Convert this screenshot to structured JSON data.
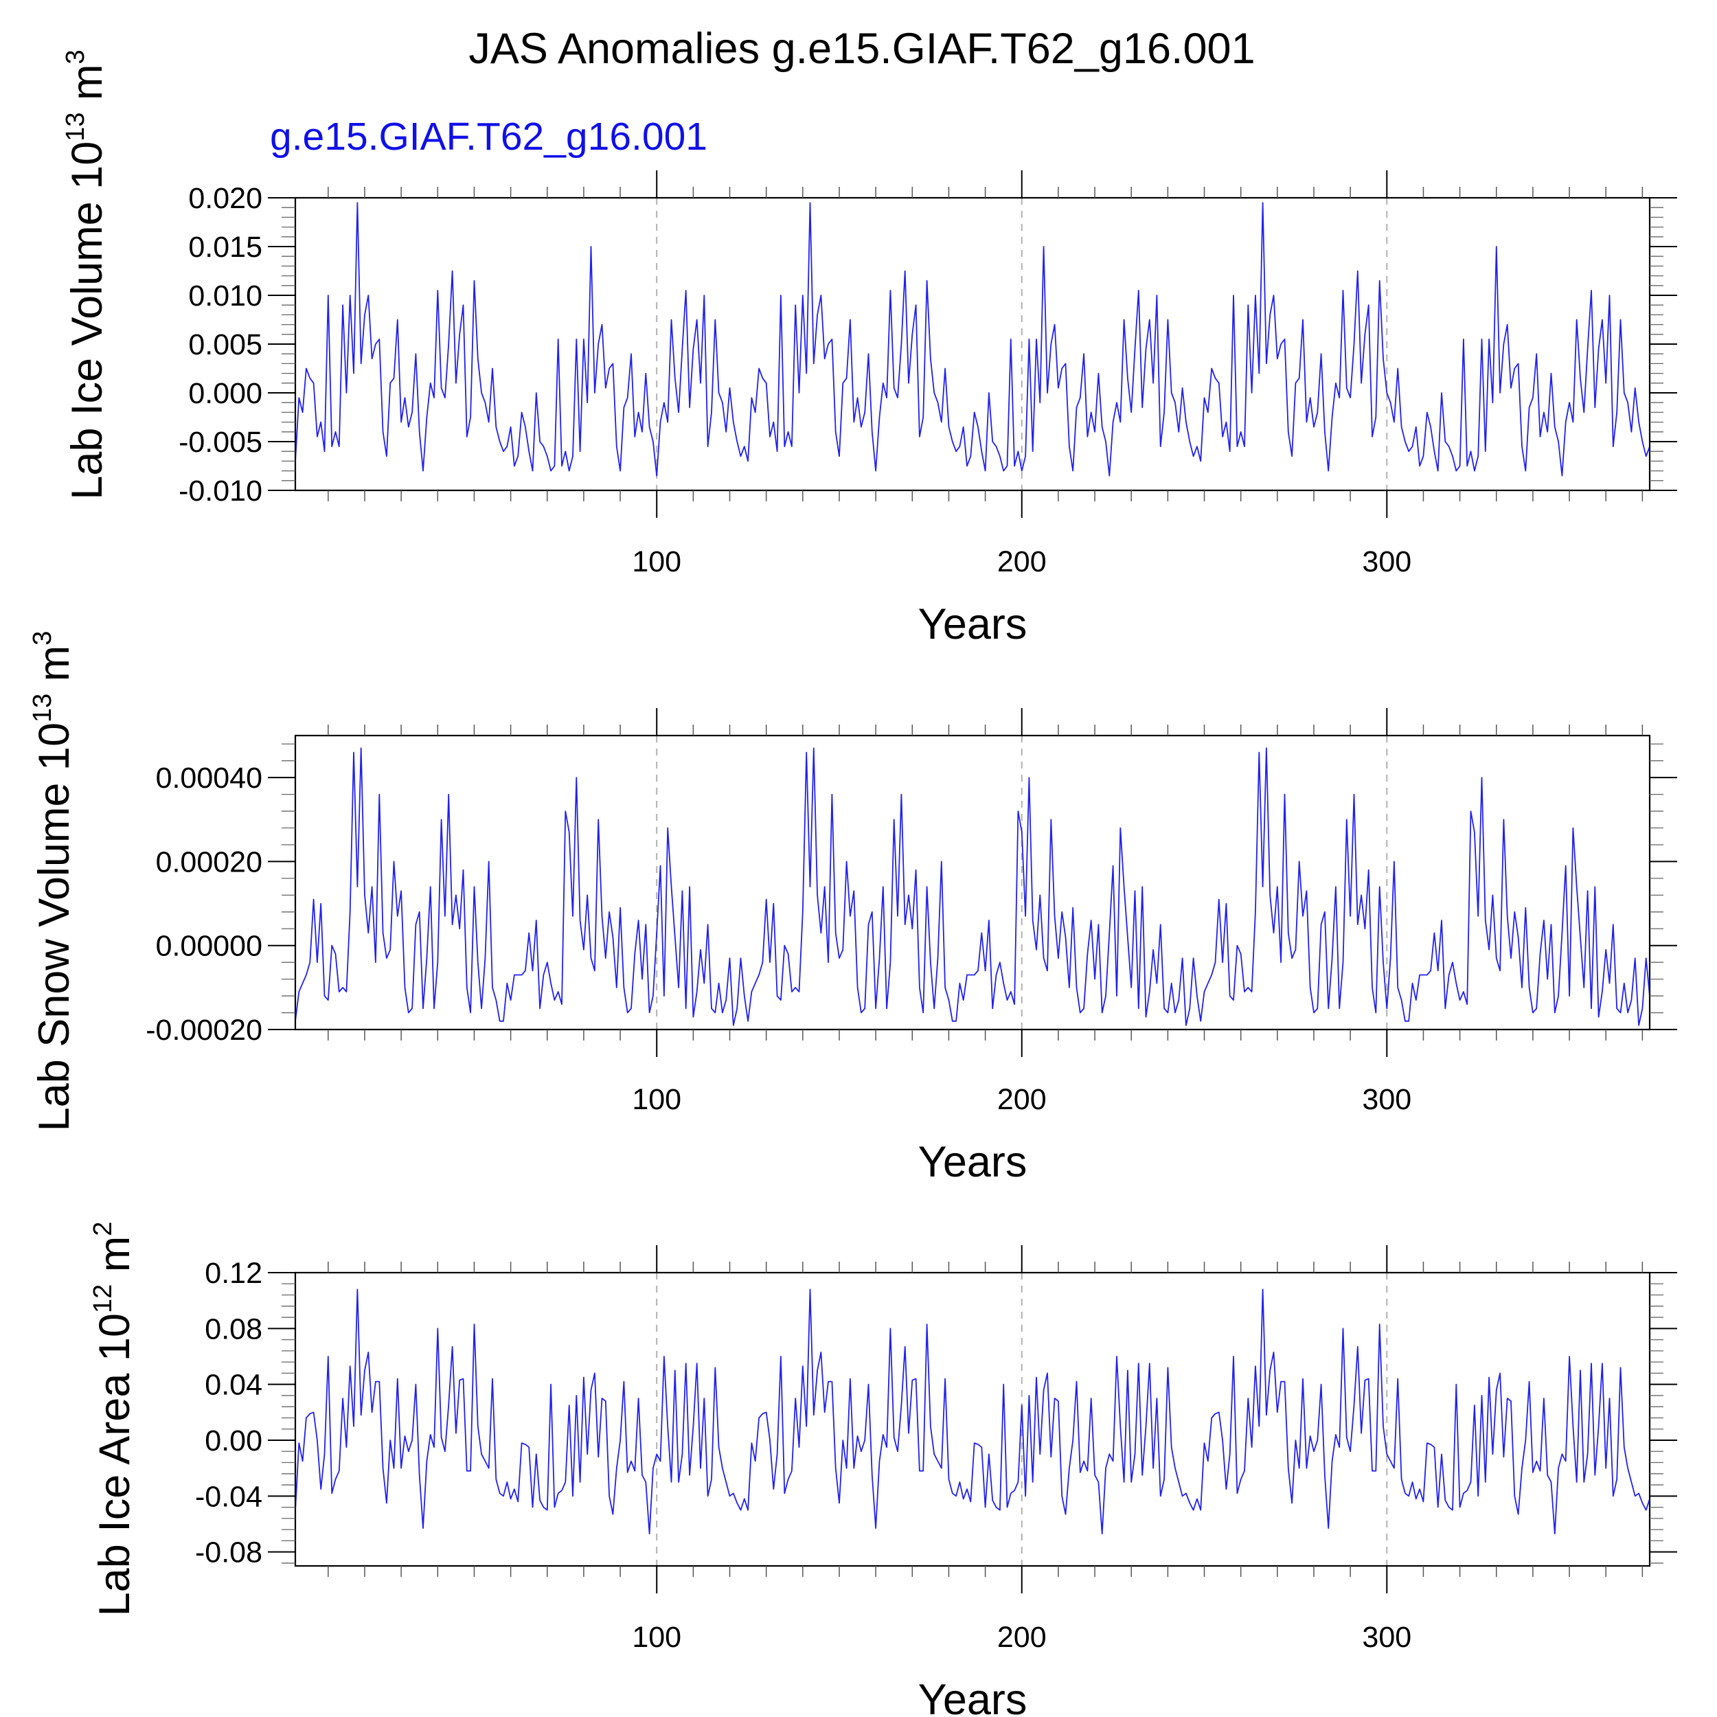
{
  "colors": {
    "series": "#2020f0",
    "frame": "#000000",
    "grid": "#b0b0b0",
    "case_label": "#1010e8"
  },
  "chart_data": [
    {
      "type": "line",
      "title": "JAS Anomalies g.e15.GIAF.T62_g16.001",
      "case_label": "g.e15.GIAF.T62_g16.001",
      "ylabel": {
        "main": "Lab Ice Volume 10",
        "exp": "13",
        "unit": " m",
        "unit_exp": "3"
      },
      "xlabel": "Years",
      "xlim": [
        1,
        372
      ],
      "ylim": [
        -0.01,
        0.02
      ],
      "yticks": [
        -0.01,
        -0.005,
        0.0,
        0.005,
        0.01,
        0.015,
        0.02
      ],
      "ytick_labels": [
        "-0.010",
        "-0.005",
        "0.000",
        "0.005",
        "0.010",
        "0.015",
        "0.020"
      ],
      "xticks": [
        100,
        200,
        300
      ],
      "xtick_labels": [
        "100",
        "200",
        "300"
      ],
      "period": 124,
      "pattern": [
        -0.007,
        -0.0005,
        -0.002,
        0.0025,
        0.0015,
        0.001,
        -0.0045,
        -0.003,
        -0.006,
        0.01,
        -0.0055,
        -0.004,
        -0.0055,
        0.009,
        0.0,
        0.01,
        0.002,
        0.0195,
        0.003,
        0.008,
        0.01,
        0.0035,
        0.005,
        0.0055,
        -0.004,
        -0.0065,
        0.001,
        0.0015,
        0.0075,
        -0.003,
        -0.0005,
        -0.0035,
        -0.002,
        0.004,
        -0.004,
        -0.008,
        -0.0025,
        0.001,
        -0.0005,
        0.0105,
        0.0005,
        -0.0005,
        0.005,
        0.0125,
        0.001,
        0.006,
        0.009,
        -0.0045,
        -0.0025,
        0.0115,
        0.0035,
        0.0,
        -0.001,
        -0.003,
        0.0025,
        -0.0035,
        -0.005,
        -0.006,
        -0.0055,
        -0.0035,
        -0.0075,
        -0.0065,
        -0.002,
        -0.0035,
        -0.006,
        -0.008,
        0.0,
        -0.005,
        -0.0055,
        -0.0065,
        -0.008,
        -0.0075,
        0.0055,
        -0.0075,
        -0.006,
        -0.008,
        -0.0065,
        0.0055,
        -0.006,
        0.0055,
        -0.001,
        0.015,
        0.0,
        0.005,
        0.007,
        0.0005,
        0.0025,
        0.003,
        -0.0055,
        -0.008,
        -0.0015,
        -0.0005,
        0.004,
        -0.0045,
        -0.002,
        -0.004,
        0.002,
        -0.0035,
        -0.005,
        -0.0085,
        -0.003,
        -0.001,
        -0.003,
        0.0075,
        0.0015,
        -0.002,
        0.0045,
        0.0105,
        -0.0015,
        0.0045,
        0.0075,
        0.001,
        0.01,
        -0.0055,
        -0.002,
        0.0075,
        0.0,
        -0.001,
        -0.004,
        0.0005,
        -0.003,
        -0.005,
        -0.0065,
        -0.0055
      ]
    },
    {
      "type": "line",
      "ylabel": {
        "main": "Lab Snow Volume 10",
        "exp": "13",
        "unit": " m",
        "unit_exp": "3"
      },
      "xlabel": "Years",
      "xlim": [
        1,
        372
      ],
      "ylim": [
        -0.0002,
        0.0005
      ],
      "yticks": [
        -0.0002,
        0.0,
        0.0002,
        0.0004
      ],
      "ytick_labels": [
        "-0.00020",
        "0.00000",
        "0.00020",
        "0.00040"
      ],
      "xticks": [
        100,
        200,
        300
      ],
      "xtick_labels": [
        "100",
        "200",
        "300"
      ],
      "period": 124,
      "pattern": [
        -0.00018,
        -0.00011,
        -9e-05,
        -7e-05,
        -4e-05,
        0.00011,
        -4e-05,
        0.0001,
        -0.00012,
        -0.00013,
        0.0,
        -2e-05,
        -0.00011,
        -0.0001,
        -0.00011,
        8e-05,
        0.00046,
        0.00014,
        0.00047,
        0.00012,
        3e-05,
        0.00014,
        -4e-05,
        0.00036,
        3e-05,
        -3e-05,
        -1e-05,
        0.0002,
        7e-05,
        0.00013,
        -0.0001,
        -0.00016,
        -0.00015,
        5e-05,
        8e-05,
        -0.00015,
        -3e-05,
        0.00014,
        -0.00015,
        -4e-05,
        0.0003,
        7e-05,
        0.00036,
        5e-05,
        0.00012,
        4e-05,
        0.00018,
        -0.0001,
        -0.00016,
        0.00014,
        -4e-05,
        -0.00015,
        -3e-05,
        0.0002,
        -0.0001,
        -0.00013,
        -0.00018,
        -0.00018,
        -9e-05,
        -0.00013,
        -7e-05,
        -7e-05,
        -7e-05,
        -6e-05,
        3e-05,
        -6e-05,
        6e-05,
        -0.00015,
        -7e-05,
        -4e-05,
        -9e-05,
        -0.00013,
        -0.00011,
        -0.00014,
        0.00032,
        0.00027,
        7e-05,
        0.0004,
        6e-05,
        -1e-05,
        0.00012,
        -3e-05,
        -6e-05,
        0.0003,
        7e-05,
        -3e-05,
        8e-05,
        2e-05,
        -0.0001,
        9e-05,
        -0.0001,
        -0.00016,
        -0.00015,
        -2e-05,
        6e-05,
        -8e-05,
        5e-05,
        -0.00016,
        -0.00012,
        3e-05,
        0.00019,
        -0.00012,
        0.00028,
        0.00014,
        2e-05,
        -0.0001,
        0.00013,
        -0.00015,
        0.00014,
        -0.00017,
        -0.00011,
        -1e-05,
        -9e-05,
        5e-05,
        -0.00015,
        -0.00016,
        -9e-05,
        -0.00016,
        -0.00013,
        -3e-05,
        -0.00019,
        -0.00015,
        -3e-05,
        -0.00012
      ]
    },
    {
      "type": "line",
      "ylabel": {
        "main": "Lab Ice Area 10",
        "exp": "12",
        "unit": " m",
        "unit_exp": "2"
      },
      "xlabel": "Years",
      "xlim": [
        1,
        372
      ],
      "ylim": [
        -0.09,
        0.12
      ],
      "yticks": [
        -0.08,
        -0.04,
        0.0,
        0.04,
        0.08,
        0.12
      ],
      "ytick_labels": [
        "-0.08",
        "-0.04",
        "0.00",
        "0.04",
        "0.08",
        "0.12"
      ],
      "xticks": [
        100,
        200,
        300
      ],
      "xtick_labels": [
        "100",
        "200",
        "300"
      ],
      "period": 124,
      "pattern": [
        -0.05,
        -0.002,
        -0.015,
        0.016,
        0.019,
        0.02,
        0.0,
        -0.035,
        -0.01,
        0.06,
        -0.038,
        -0.028,
        -0.022,
        0.03,
        -0.005,
        0.053,
        0.01,
        0.108,
        0.018,
        0.05,
        0.063,
        0.02,
        0.042,
        0.042,
        -0.02,
        -0.045,
        0.0,
        -0.02,
        0.044,
        -0.02,
        0.003,
        -0.008,
        0.0,
        0.04,
        -0.025,
        -0.063,
        -0.015,
        0.004,
        -0.005,
        0.08,
        0.002,
        -0.008,
        0.025,
        0.067,
        0.005,
        0.043,
        0.044,
        -0.022,
        -0.022,
        0.083,
        0.01,
        -0.01,
        -0.015,
        -0.02,
        0.044,
        -0.028,
        -0.038,
        -0.04,
        -0.03,
        -0.042,
        -0.035,
        -0.044,
        -0.002,
        -0.003,
        -0.005,
        -0.048,
        -0.01,
        -0.043,
        -0.048,
        -0.05,
        0.04,
        -0.048,
        -0.038,
        -0.036,
        -0.03,
        0.025,
        -0.04,
        0.032,
        -0.03,
        0.045,
        -0.01,
        0.036,
        0.048,
        -0.012,
        0.03,
        0.028,
        -0.04,
        -0.053,
        -0.02,
        0.0,
        0.042,
        -0.023,
        -0.015,
        -0.022,
        0.03,
        -0.025,
        -0.03,
        -0.067,
        -0.02,
        -0.01,
        -0.015,
        0.06,
        0.01,
        -0.03,
        0.05,
        -0.03,
        -0.01,
        0.055,
        -0.025,
        0.01,
        0.055,
        -0.02,
        0.03,
        -0.04,
        -0.028,
        0.052,
        -0.005,
        -0.02,
        -0.03,
        -0.04,
        -0.038,
        -0.045,
        -0.05,
        -0.042
      ]
    }
  ]
}
